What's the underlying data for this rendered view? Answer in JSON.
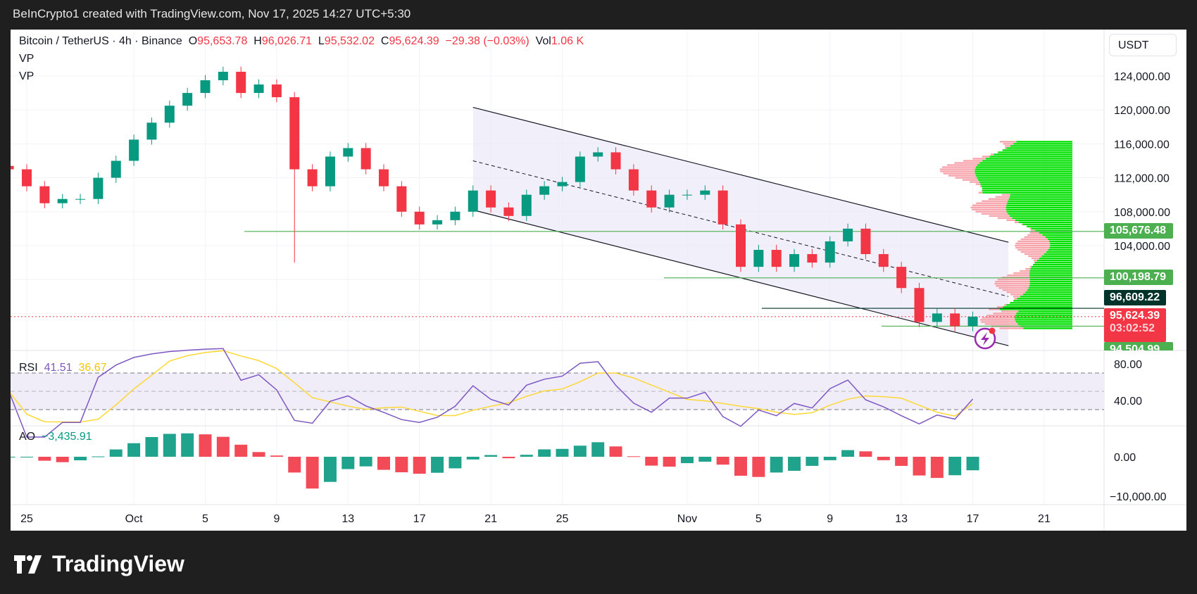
{
  "header": {
    "attribution": "BeInCrypto1 created with TradingView.com, Nov 17, 2025 14:27 UTC+5:30"
  },
  "legend": {
    "symbol": "Bitcoin / TetherUS · 4h · Binance",
    "o_label": "O",
    "o": "95,653.78",
    "h_label": "H",
    "h": "96,026.71",
    "l_label": "L",
    "l": "95,532.02",
    "c_label": "C",
    "c": "95,624.39",
    "change": "−29.38 (−0.03%)",
    "vol_label": "Vol",
    "vol": "1.06 K",
    "vp1": "VP",
    "vp2": "VP"
  },
  "currency_button": "USDT",
  "rsi_legend": {
    "label": "RSI",
    "value": "41.51",
    "ma": "36.67"
  },
  "ao_legend": {
    "label": "AO",
    "value": "−3,435.91"
  },
  "badges": {
    "level1": "105,676.48",
    "level2": "100,198.79",
    "level3": "96,609.22",
    "price": "95,624.39",
    "countdown": "03:02:52",
    "level4": "94,504.99"
  },
  "colors": {
    "up": "#089981",
    "down": "#f23645",
    "rsi": "#7e57c2",
    "rsi_ma": "#fdd835",
    "level": "#4caf50",
    "dark_level": "#00332a",
    "vp_up": "#00e000",
    "vp_down": "#f7a5ad"
  },
  "logo": "TradingView",
  "chart_data": {
    "type": "candlestick",
    "timeframe": "4h",
    "x_tick_labels": [
      "25",
      "Oct",
      "5",
      "9",
      "13",
      "17",
      "21",
      "25",
      "Nov",
      "5",
      "9",
      "13",
      "17",
      "21"
    ],
    "x_tick_dates": [
      "2025-09-25",
      "2025-10-01",
      "2025-10-05",
      "2025-10-09",
      "2025-10-13",
      "2025-10-17",
      "2025-10-21",
      "2025-10-25",
      "2025-11-01",
      "2025-11-05",
      "2025-11-09",
      "2025-11-13",
      "2025-11-17",
      "2025-11-21"
    ],
    "y_tick_labels": [
      "124,000.00",
      "120,000.00",
      "116,000.00",
      "112,000.00",
      "108,000.00",
      "104,000.00"
    ],
    "ylim": [
      93000,
      127000
    ],
    "start_date": "2025-09-24",
    "daily_close": [
      113000,
      111000,
      109000,
      109500,
      109500,
      112000,
      114000,
      116500,
      118500,
      120500,
      122000,
      123500,
      124500,
      122000,
      123000,
      121500,
      113000,
      111000,
      114500,
      115500,
      113000,
      111000,
      108000,
      106500,
      107000,
      108000,
      110500,
      108500,
      107500,
      110000,
      111000,
      111500,
      114500,
      115000,
      113000,
      110500,
      108500,
      110000,
      110000,
      110500,
      106500,
      101500,
      103500,
      101500,
      103000,
      102000,
      104500,
      106000,
      103000,
      101500,
      99000,
      95000,
      96000,
      94500,
      95624.39
    ],
    "crash_low": {
      "date": "2025-10-10",
      "low": 102000
    },
    "horizontal_levels": [
      105676.48,
      100198.79,
      96609.22,
      94504.99
    ],
    "current_price": 95624.39,
    "channel": {
      "start_date": "2025-10-20",
      "end_date": "2025-11-19",
      "upper": [
        120300,
        104400
      ],
      "middle": [
        114000,
        98000
      ],
      "lower": [
        108200,
        92200
      ]
    },
    "rsi": {
      "ticks": [
        "80.00",
        "40.00"
      ],
      "band": [
        30,
        70
      ],
      "mid": 50,
      "last": 41.51,
      "ma_last": 36.67
    },
    "ao": {
      "ticks": [
        "0.00",
        "−10,000.00"
      ],
      "last": -3435.91
    }
  }
}
